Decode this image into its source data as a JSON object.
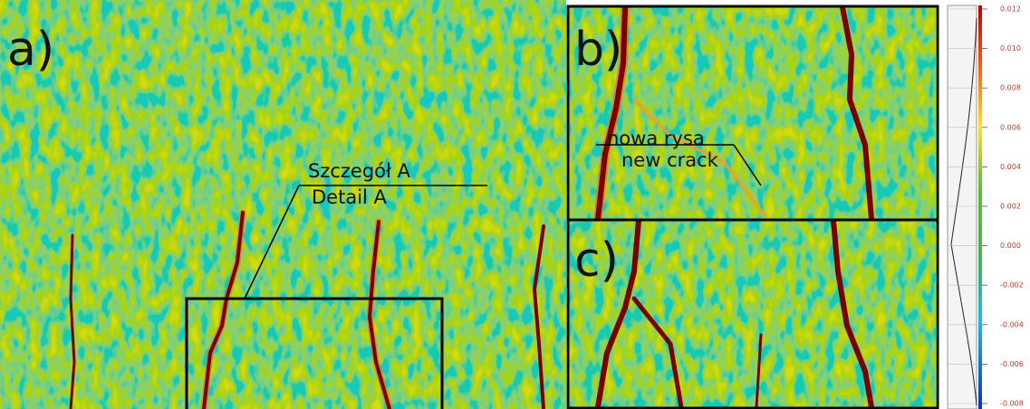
{
  "panels": {
    "a": "a)",
    "b": "b)",
    "c": "c)"
  },
  "annotations": {
    "detail": [
      "Szczegół A",
      "Detail A"
    ],
    "crack": [
      "nowa rysa",
      "new crack"
    ]
  },
  "colorbar": {
    "ticks": [
      {
        "value": 0.012,
        "label": "0.012"
      },
      {
        "value": 0.01,
        "label": "0.010"
      },
      {
        "value": 0.008,
        "label": "0.008"
      },
      {
        "value": 0.006,
        "label": "0.006"
      },
      {
        "value": 0.004,
        "label": "0.004"
      },
      {
        "value": 0.002,
        "label": "0.002"
      },
      {
        "value": 0,
        "label": "0.000"
      },
      {
        "value": -0.002,
        "label": "-0.002"
      },
      {
        "value": -0.004,
        "label": "-0.004"
      },
      {
        "value": -0.006,
        "label": "-0.006"
      },
      {
        "value": -0.008,
        "label": "-0.008"
      }
    ]
  }
}
